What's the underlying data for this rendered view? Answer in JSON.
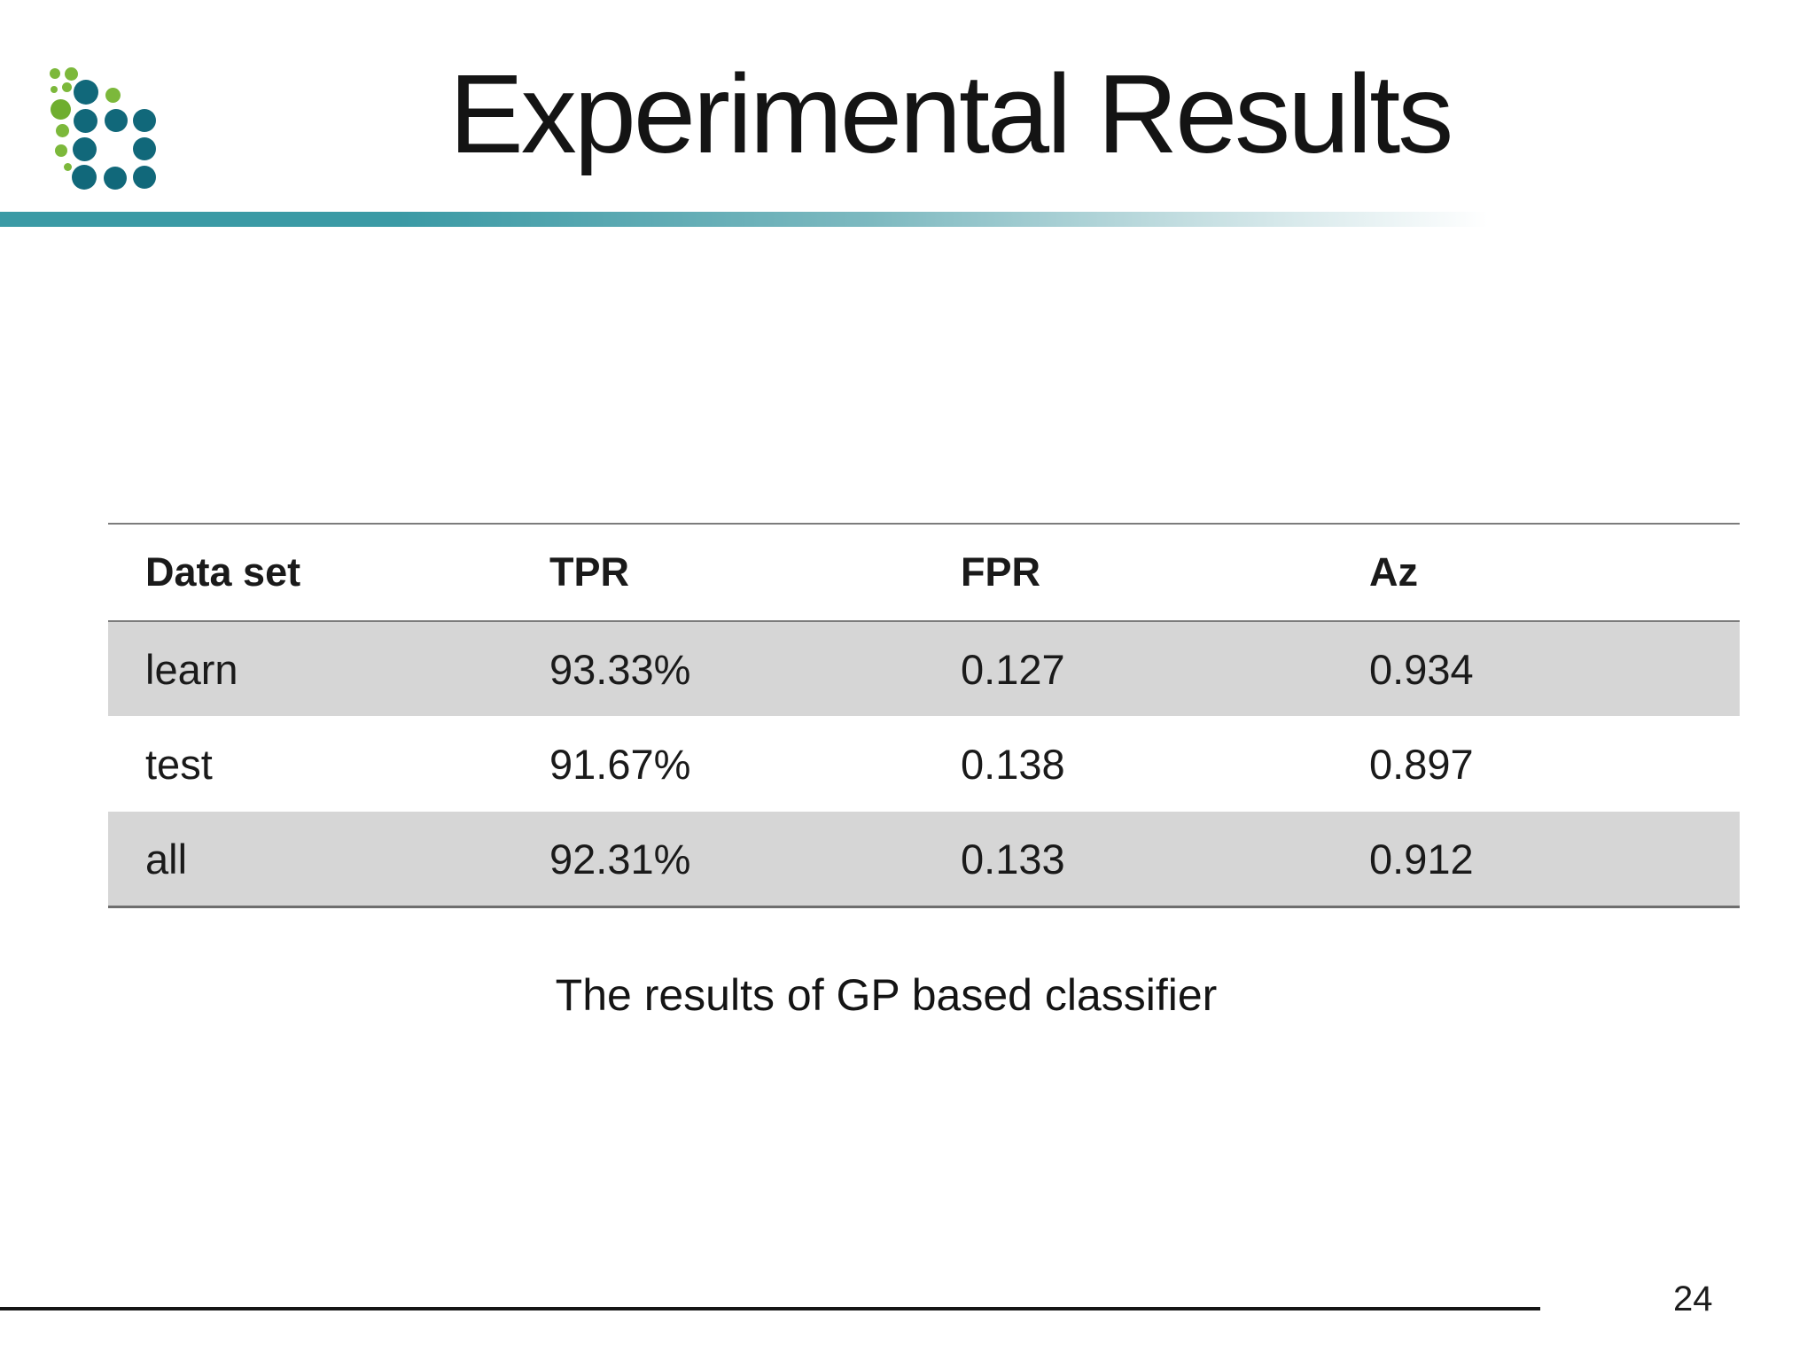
{
  "slide": {
    "title": "Experimental Results",
    "caption": "The results of GP based classifier",
    "page_number": "24"
  },
  "table": {
    "columns": [
      "Data set",
      "TPR",
      "FPR",
      "Az"
    ],
    "rows": [
      {
        "cells": [
          "learn",
          "93.33%",
          "0.127",
          "0.934"
        ],
        "shaded": true
      },
      {
        "cells": [
          "test",
          "91.67%",
          "0.138",
          "0.897"
        ],
        "shaded": false
      },
      {
        "cells": [
          "all",
          "92.31%",
          "0.133",
          "0.912"
        ],
        "shaded": true
      }
    ]
  },
  "colors": {
    "accent_teal": "#3b9aa5",
    "logo_teal": "#11687a",
    "logo_green": "#7cb83b",
    "logo_green_dark": "#6fae2f",
    "row_shade": "#d6d6d6"
  },
  "logo": {
    "dots": [
      [
        62,
        83,
        6,
        "g"
      ],
      [
        80,
        83,
        7.5,
        "g"
      ],
      [
        61,
        101,
        4,
        "g"
      ],
      [
        75,
        98,
        5.5,
        "g"
      ],
      [
        97,
        104,
        14,
        "t"
      ],
      [
        127,
        107,
        8.5,
        "g"
      ],
      [
        68,
        123,
        11.5,
        "gd"
      ],
      [
        96,
        136,
        13.5,
        "t"
      ],
      [
        131,
        136,
        13,
        "t"
      ],
      [
        163,
        136,
        13,
        "t"
      ],
      [
        70,
        147,
        7.5,
        "g"
      ],
      [
        95,
        168,
        13.5,
        "t"
      ],
      [
        163,
        168,
        13,
        "t"
      ],
      [
        69,
        170,
        7,
        "g"
      ],
      [
        76,
        188,
        4.5,
        "g"
      ],
      [
        95,
        200,
        14,
        "t"
      ],
      [
        130,
        201,
        13,
        "t"
      ],
      [
        163,
        200,
        13,
        "t"
      ]
    ]
  }
}
